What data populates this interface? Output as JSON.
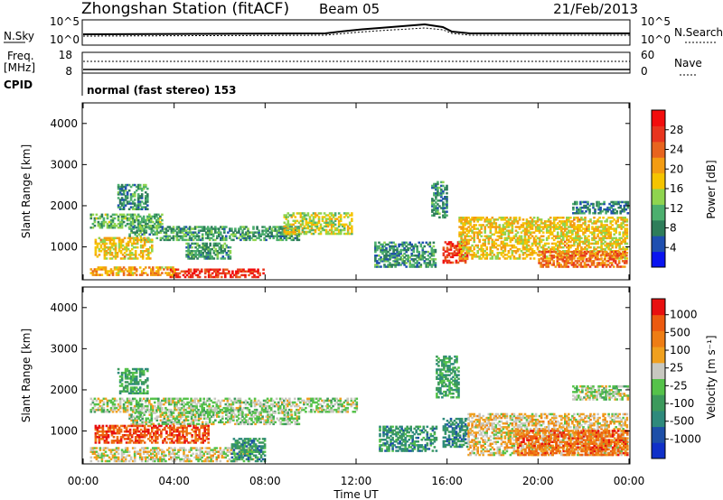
{
  "header": {
    "station": "Zhongshan Station (fitACF)",
    "beam": "Beam 05",
    "date": "21/Feb/2013"
  },
  "noise_panel": {
    "left_label": "N.Sky",
    "right_label": "N.Search",
    "left_ticks": [
      "10^5",
      "10^0"
    ],
    "right_ticks": [
      "10^5",
      "10^0"
    ]
  },
  "freq_panel": {
    "left_label_1": "Freq.",
    "left_label_2": "[MHz]",
    "left_ticks": [
      "18",
      "8"
    ],
    "right_label": "Nave",
    "right_ticks": [
      "60",
      "0"
    ]
  },
  "cpid": {
    "label": "CPID",
    "mode_text": "normal (fast stereo) 153"
  },
  "x_axis": {
    "label": "Time UT",
    "ticks": [
      "00:00",
      "04:00",
      "08:00",
      "12:00",
      "16:00",
      "20:00",
      "00:00"
    ]
  },
  "y_axis": {
    "label": "Slant Range [km]",
    "ticks": [
      "1000",
      "2000",
      "3000",
      "4000"
    ]
  },
  "power_colorbar": {
    "label": "Power [dB]",
    "ticks": [
      "4",
      "8",
      "12",
      "16",
      "20",
      "24",
      "28"
    ],
    "colors": [
      "#0a14f0",
      "#1f4fb0",
      "#2e7d5a",
      "#4caf6e",
      "#8fd44f",
      "#f5c400",
      "#f39c12",
      "#e8641e",
      "#e8351e",
      "#f20d0d"
    ]
  },
  "velocity_colorbar": {
    "label": "Velocity [m s⁻¹]",
    "ticks": [
      "1000",
      "500",
      "100",
      "25",
      "-25",
      "-100",
      "-500",
      "-1000"
    ],
    "colors": [
      "#1030c8",
      "#1d4fa8",
      "#2e8a7c",
      "#3c9a5c",
      "#55c24a",
      "#c8c8c0",
      "#f0a01e",
      "#ee7d14",
      "#ec5a10",
      "#e81010"
    ]
  },
  "chart_data": [
    {
      "type": "heatmap",
      "title": "",
      "xlabel": "Time UT",
      "ylabel": "Slant Range [km]",
      "xlim": [
        "00:00",
        "24:00"
      ],
      "ylim": [
        200,
        4500
      ],
      "colorbar_label": "Power [dB]",
      "colorbar_range": [
        0,
        32
      ],
      "regions": [
        {
          "t0": 0.3,
          "t1": 4.0,
          "r0": 300,
          "r1": 520,
          "value": 20
        },
        {
          "t0": 3.8,
          "t1": 7.9,
          "r0": 250,
          "r1": 460,
          "value": 27
        },
        {
          "t0": 0.3,
          "t1": 3.5,
          "r0": 1450,
          "r1": 1800,
          "value": 12
        },
        {
          "t0": 2.0,
          "t1": 9.5,
          "r0": 1150,
          "r1": 1500,
          "value": 10
        },
        {
          "t0": 0.5,
          "t1": 3.0,
          "r0": 700,
          "r1": 1200,
          "value": 18
        },
        {
          "t0": 1.5,
          "t1": 2.8,
          "r0": 1900,
          "r1": 2500,
          "value": 9
        },
        {
          "t0": 8.8,
          "t1": 11.8,
          "r0": 1300,
          "r1": 1800,
          "value": 16
        },
        {
          "t0": 4.5,
          "t1": 6.5,
          "r0": 700,
          "r1": 1100,
          "value": 10
        },
        {
          "t0": 15.8,
          "t1": 16.9,
          "r0": 600,
          "r1": 1100,
          "value": 27
        },
        {
          "t0": 15.3,
          "t1": 16.0,
          "r0": 1700,
          "r1": 2600,
          "value": 9
        },
        {
          "t0": 16.5,
          "t1": 23.9,
          "r0": 700,
          "r1": 1700,
          "value": 18
        },
        {
          "t0": 20.0,
          "t1": 23.9,
          "r0": 500,
          "r1": 900,
          "value": 24
        },
        {
          "t0": 21.5,
          "t1": 23.9,
          "r0": 1800,
          "r1": 2100,
          "value": 8
        },
        {
          "t0": 12.8,
          "t1": 15.5,
          "r0": 500,
          "r1": 1100,
          "value": 9
        }
      ]
    },
    {
      "type": "heatmap",
      "title": "",
      "xlabel": "Time UT",
      "ylabel": "Slant Range [km]",
      "xlim": [
        "00:00",
        "24:00"
      ],
      "ylim": [
        200,
        4500
      ],
      "colorbar_label": "Velocity [m s⁻¹]",
      "colorbar_range": [
        -1000,
        1000
      ],
      "regions": [
        {
          "t0": 0.3,
          "t1": 7.5,
          "r0": 250,
          "r1": 600,
          "value": 150
        },
        {
          "t0": 0.3,
          "t1": 12.0,
          "r0": 1450,
          "r1": 1800,
          "value": 0
        },
        {
          "t0": 2.0,
          "t1": 9.5,
          "r0": 1150,
          "r1": 1450,
          "value": 0
        },
        {
          "t0": 0.5,
          "t1": 5.5,
          "r0": 700,
          "r1": 1150,
          "value": 700
        },
        {
          "t0": 6.5,
          "t1": 8.0,
          "r0": 250,
          "r1": 800,
          "value": -400
        },
        {
          "t0": 1.5,
          "t1": 2.8,
          "r0": 1900,
          "r1": 2500,
          "value": -300
        },
        {
          "t0": 13.0,
          "t1": 15.5,
          "r0": 500,
          "r1": 1100,
          "value": -400
        },
        {
          "t0": 15.8,
          "t1": 16.9,
          "r0": 600,
          "r1": 1300,
          "value": -450
        },
        {
          "t0": 16.9,
          "t1": 23.9,
          "r0": 400,
          "r1": 1400,
          "value": 200
        },
        {
          "t0": 19.0,
          "t1": 23.9,
          "r0": 400,
          "r1": 1000,
          "value": 600
        },
        {
          "t0": 21.5,
          "t1": 23.9,
          "r0": 1750,
          "r1": 2100,
          "value": 0
        },
        {
          "t0": 15.5,
          "t1": 16.5,
          "r0": 1800,
          "r1": 2800,
          "value": -300
        }
      ]
    }
  ]
}
